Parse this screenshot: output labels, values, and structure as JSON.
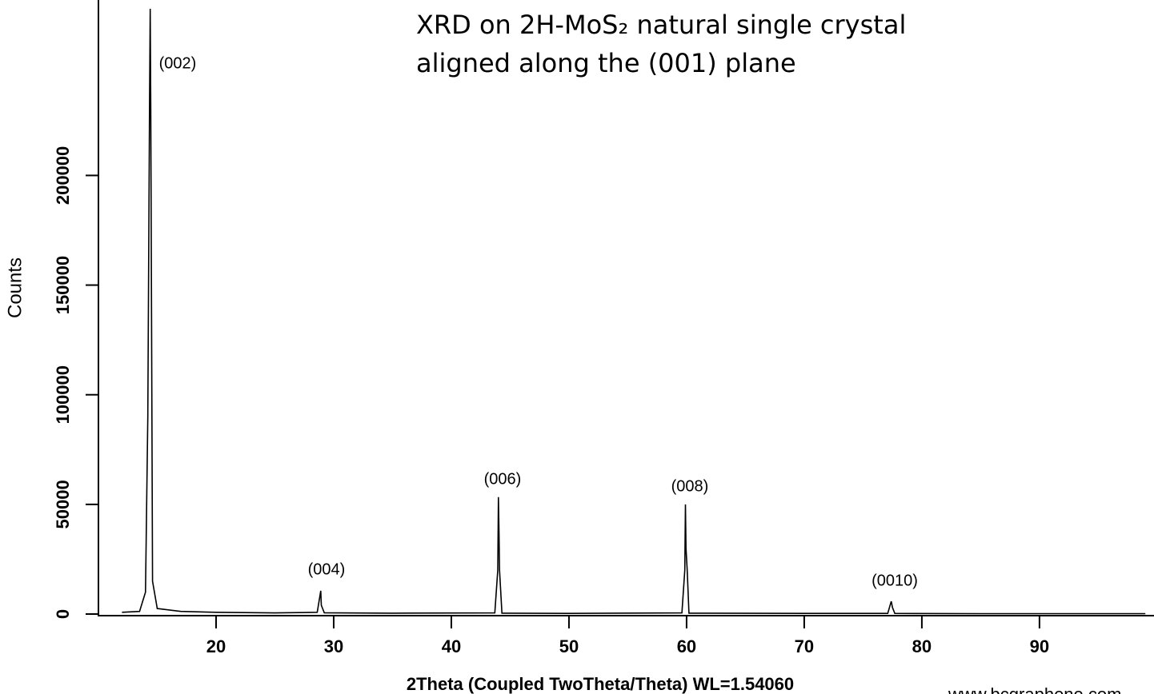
{
  "chart_data": {
    "type": "line",
    "title_lines": [
      "XRD on 2H-MoS₂ natural single crystal",
      "aligned along the (001) plane"
    ],
    "x_label": "2Theta (Coupled TwoTheta/Theta) WL=1.54060",
    "y_label": "Counts",
    "watermark": "www.bcgraphene.com",
    "annotations": [
      "(002)",
      "(004)",
      "(006)",
      "(008)",
      "(0010)"
    ],
    "xlim": [
      10,
      99.6
    ],
    "ylim": [
      0,
      280000
    ],
    "xticks": [
      20,
      30,
      40,
      50,
      60,
      70,
      80,
      90
    ],
    "yticks": [
      0,
      50000,
      100000,
      150000,
      200000
    ],
    "grid": false,
    "series": [
      {
        "color": "#000000",
        "x": [
          12,
          13.5,
          14.0,
          14.2,
          14.35,
          14.4,
          14.45,
          14.6,
          15,
          17,
          20,
          25,
          28.6,
          28.85,
          28.9,
          28.95,
          29.2,
          35,
          43.7,
          43.95,
          44.0,
          44.05,
          44.1,
          44.3,
          50,
          59.6,
          59.85,
          59.9,
          59.95,
          60.05,
          60.2,
          70,
          77.1,
          77.35,
          77.4,
          77.5,
          77.7,
          85,
          99
        ],
        "values": [
          800,
          1200,
          10000,
          90000,
          235000,
          276000,
          230000,
          15000,
          2500,
          1200,
          800,
          500,
          800,
          9000,
          10600,
          4000,
          600,
          400,
          500,
          20000,
          53300,
          38000,
          20000,
          400,
          300,
          500,
          20000,
          50000,
          30000,
          20000,
          400,
          300,
          300,
          5000,
          5800,
          3000,
          300,
          200,
          200
        ]
      }
    ]
  }
}
